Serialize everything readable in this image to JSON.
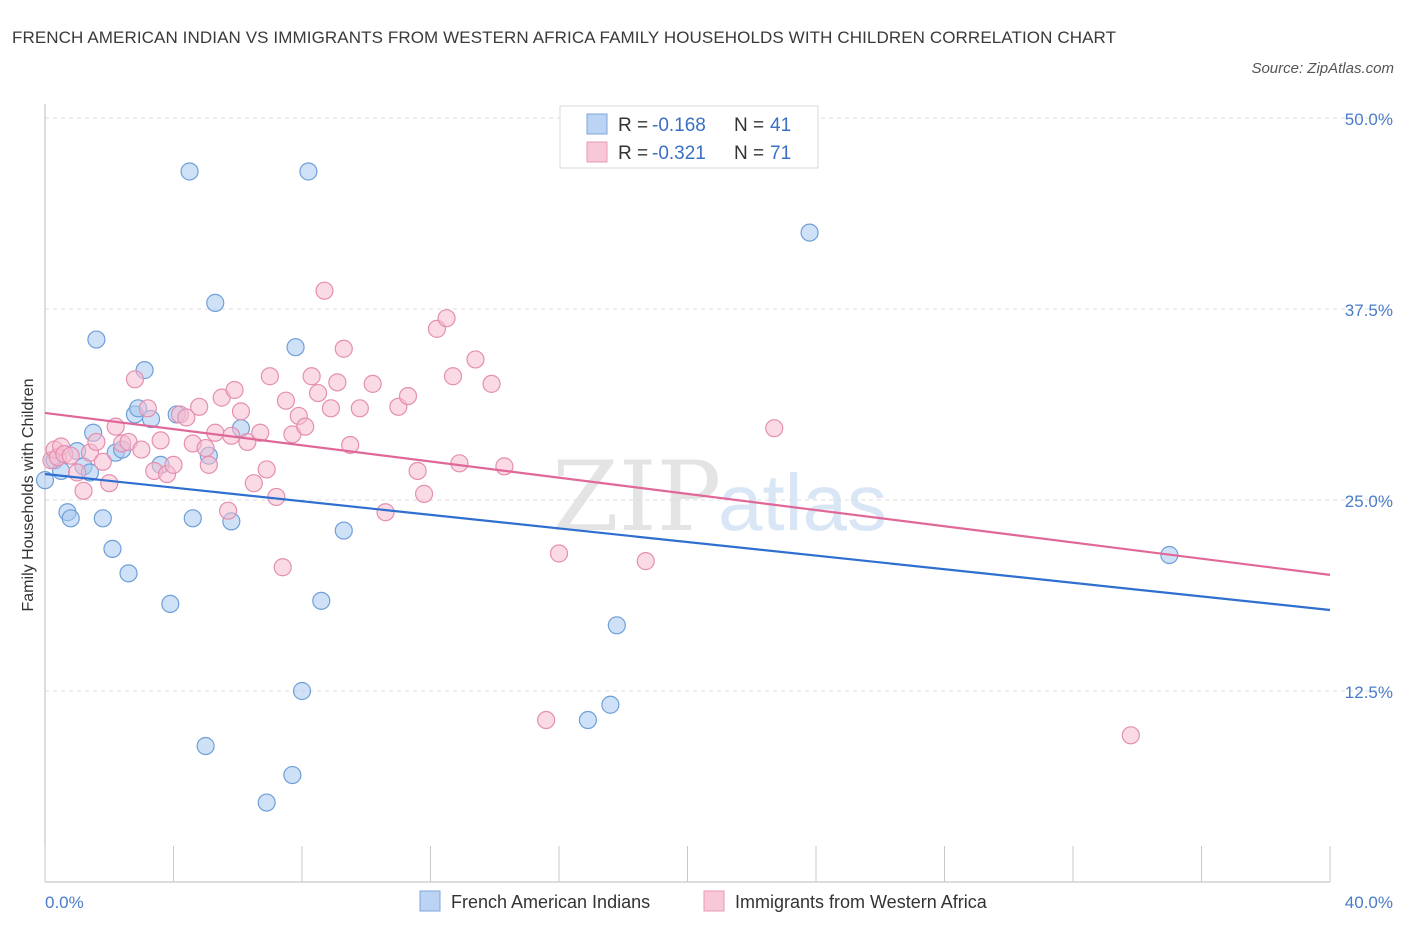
{
  "title": "FRENCH AMERICAN INDIAN VS IMMIGRANTS FROM WESTERN AFRICA FAMILY HOUSEHOLDS WITH CHILDREN CORRELATION CHART",
  "source": "Source: ZipAtlas.com",
  "watermark": {
    "zip": "ZIP",
    "atlas": "atlas"
  },
  "chart_data": {
    "type": "scatter",
    "ylabel": "Family Households with Children",
    "xlim": [
      0,
      40
    ],
    "ylim": [
      0,
      50
    ],
    "x_tick_labels": [
      "0.0%",
      "40.0%"
    ],
    "y_ticks": [
      {
        "value": 12.5,
        "label": "12.5%"
      },
      {
        "value": 25.0,
        "label": "25.0%"
      },
      {
        "value": 37.5,
        "label": "37.5%"
      },
      {
        "value": 50.0,
        "label": "50.0%"
      }
    ],
    "legend": {
      "r_label": "R =",
      "n_label": "N =",
      "entries": [
        {
          "r": "-0.168",
          "n": "41"
        },
        {
          "r": "-0.321",
          "n": "71"
        }
      ]
    },
    "series": [
      {
        "name": "French American Indians",
        "color": "#a8c8f0",
        "edge": "#6f9fd8",
        "line_color": "#2f6fd0",
        "trend": {
          "x": [
            0,
            40
          ],
          "y": [
            26.7,
            17.8
          ]
        },
        "points": [
          [
            0.0,
            26.3
          ],
          [
            0.3,
            27.6
          ],
          [
            0.5,
            26.9
          ],
          [
            0.7,
            24.2
          ],
          [
            0.8,
            23.8
          ],
          [
            1.0,
            28.2
          ],
          [
            1.2,
            27.2
          ],
          [
            1.4,
            26.8
          ],
          [
            1.5,
            29.4
          ],
          [
            1.6,
            35.5
          ],
          [
            1.8,
            23.8
          ],
          [
            2.1,
            21.8
          ],
          [
            2.2,
            28.1
          ],
          [
            2.4,
            28.3
          ],
          [
            2.6,
            20.2
          ],
          [
            2.8,
            30.6
          ],
          [
            2.9,
            31.0
          ],
          [
            3.1,
            33.5
          ],
          [
            3.3,
            30.3
          ],
          [
            3.6,
            27.3
          ],
          [
            3.9,
            18.2
          ],
          [
            4.1,
            30.6
          ],
          [
            4.5,
            46.5
          ],
          [
            4.6,
            23.8
          ],
          [
            5.0,
            8.9
          ],
          [
            5.1,
            27.9
          ],
          [
            5.3,
            37.9
          ],
          [
            5.8,
            23.6
          ],
          [
            6.1,
            29.7
          ],
          [
            6.9,
            5.2
          ],
          [
            7.7,
            7.0
          ],
          [
            7.8,
            35.0
          ],
          [
            8.0,
            12.5
          ],
          [
            8.2,
            46.5
          ],
          [
            8.6,
            18.4
          ],
          [
            9.3,
            23.0
          ],
          [
            16.9,
            10.6
          ],
          [
            17.6,
            11.6
          ],
          [
            17.8,
            16.8
          ],
          [
            23.8,
            42.5
          ],
          [
            35.0,
            21.4
          ]
        ]
      },
      {
        "name": "Immigrants from Western Africa",
        "color": "#f6bcd0",
        "edge": "#e58fb0",
        "line_color": "#e06898",
        "trend": {
          "x": [
            0,
            40
          ],
          "y": [
            30.7,
            20.1
          ]
        },
        "points": [
          [
            0.2,
            27.6
          ],
          [
            0.3,
            28.3
          ],
          [
            0.4,
            27.8
          ],
          [
            0.5,
            28.5
          ],
          [
            0.6,
            28.0
          ],
          [
            0.8,
            27.9
          ],
          [
            1.0,
            26.8
          ],
          [
            1.2,
            25.6
          ],
          [
            1.4,
            28.1
          ],
          [
            1.6,
            28.8
          ],
          [
            1.8,
            27.5
          ],
          [
            2.0,
            26.1
          ],
          [
            2.2,
            29.8
          ],
          [
            2.4,
            28.7
          ],
          [
            2.6,
            28.8
          ],
          [
            2.8,
            32.9
          ],
          [
            3.0,
            28.3
          ],
          [
            3.2,
            31.0
          ],
          [
            3.4,
            26.9
          ],
          [
            3.6,
            28.9
          ],
          [
            3.8,
            26.7
          ],
          [
            4.0,
            27.3
          ],
          [
            4.2,
            30.6
          ],
          [
            4.4,
            30.4
          ],
          [
            4.6,
            28.7
          ],
          [
            4.8,
            31.1
          ],
          [
            5.0,
            28.4
          ],
          [
            5.1,
            27.3
          ],
          [
            5.3,
            29.4
          ],
          [
            5.5,
            31.7
          ],
          [
            5.7,
            24.3
          ],
          [
            5.8,
            29.2
          ],
          [
            5.9,
            32.2
          ],
          [
            6.1,
            30.8
          ],
          [
            6.3,
            28.8
          ],
          [
            6.5,
            26.1
          ],
          [
            6.7,
            29.4
          ],
          [
            6.9,
            27.0
          ],
          [
            7.0,
            33.1
          ],
          [
            7.2,
            25.2
          ],
          [
            7.4,
            20.6
          ],
          [
            7.5,
            31.5
          ],
          [
            7.7,
            29.3
          ],
          [
            7.9,
            30.5
          ],
          [
            8.1,
            29.8
          ],
          [
            8.3,
            33.1
          ],
          [
            8.5,
            32.0
          ],
          [
            8.7,
            38.7
          ],
          [
            8.9,
            31.0
          ],
          [
            9.1,
            32.7
          ],
          [
            9.3,
            34.9
          ],
          [
            9.5,
            28.6
          ],
          [
            9.8,
            31.0
          ],
          [
            10.2,
            32.6
          ],
          [
            10.6,
            24.2
          ],
          [
            11.0,
            31.1
          ],
          [
            11.3,
            31.8
          ],
          [
            11.6,
            26.9
          ],
          [
            11.8,
            25.4
          ],
          [
            12.2,
            36.2
          ],
          [
            12.5,
            36.9
          ],
          [
            12.7,
            33.1
          ],
          [
            12.9,
            27.4
          ],
          [
            13.4,
            34.2
          ],
          [
            13.9,
            32.6
          ],
          [
            14.3,
            27.2
          ],
          [
            15.6,
            10.6
          ],
          [
            16.0,
            21.5
          ],
          [
            18.7,
            21.0
          ],
          [
            22.7,
            29.7
          ],
          [
            33.8,
            9.6
          ]
        ]
      }
    ]
  }
}
